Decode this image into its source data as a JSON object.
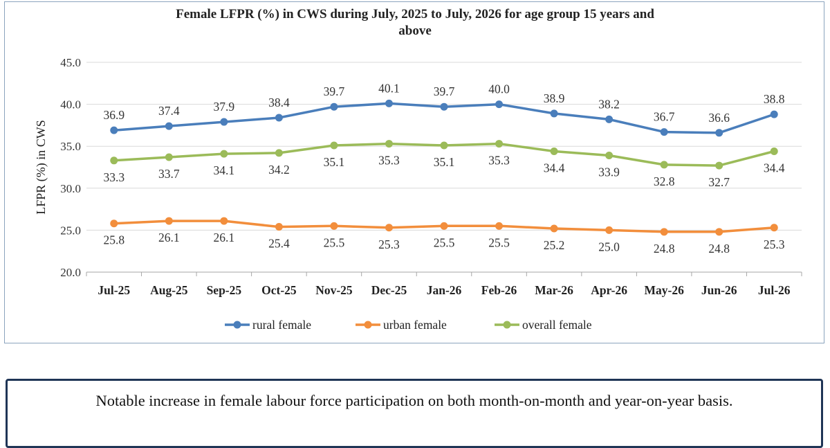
{
  "chart_data": {
    "type": "line",
    "title_lines": [
      "Female LFPR (%) in CWS during July, 2025 to July, 2026 for age group 15 years and",
      "above"
    ],
    "ylabel": "LFPR (%) in CWS",
    "xlabel": "",
    "ylim": [
      20.0,
      45.0
    ],
    "yticks": [
      "45.0",
      "40.0",
      "35.0",
      "30.0",
      "25.0",
      "20.0"
    ],
    "grid": true,
    "legend_position": "bottom",
    "categories": [
      "Jul-25",
      "Aug-25",
      "Sep-25",
      "Oct-25",
      "Nov-25",
      "Dec-25",
      "Jan-26",
      "Feb-26",
      "Mar-26",
      "Apr-26",
      "May-26",
      "Jun-26",
      "Jul-26"
    ],
    "series": [
      {
        "name": "rural female",
        "color": "#4a7ebb",
        "label_position": "above",
        "values": [
          36.9,
          37.4,
          37.9,
          38.4,
          39.7,
          40.1,
          39.7,
          40.0,
          38.9,
          38.2,
          36.7,
          36.6,
          38.8
        ],
        "labels": [
          "36.9",
          "37.4",
          "37.9",
          "38.4",
          "39.7",
          "40.1",
          "39.7",
          "40.0",
          "38.9",
          "38.2",
          "36.7",
          "36.6",
          "38.8"
        ]
      },
      {
        "name": "urban female",
        "color": "#f28e3c",
        "label_position": "below",
        "values": [
          25.8,
          26.1,
          26.1,
          25.4,
          25.5,
          25.3,
          25.5,
          25.5,
          25.2,
          25.0,
          24.8,
          24.8,
          25.3
        ],
        "labels": [
          "25.8",
          "26.1",
          "26.1",
          "25.4",
          "25.5",
          "25.3",
          "25.5",
          "25.5",
          "25.2",
          "25.0",
          "24.8",
          "24.8",
          "25.3"
        ]
      },
      {
        "name": "overall female",
        "color": "#9bbb59",
        "label_position": "below",
        "values": [
          33.3,
          33.7,
          34.1,
          34.2,
          35.1,
          35.3,
          35.1,
          35.3,
          34.4,
          33.9,
          32.8,
          32.7,
          34.4
        ],
        "labels": [
          "33.3",
          "33.7",
          "34.1",
          "34.2",
          "35.1",
          "35.3",
          "35.1",
          "35.3",
          "34.4",
          "33.9",
          "32.8",
          "32.7",
          "34.4"
        ]
      }
    ]
  },
  "note": {
    "text": "Notable increase in female labour force participation on both month-on-month and year-on-year basis."
  }
}
